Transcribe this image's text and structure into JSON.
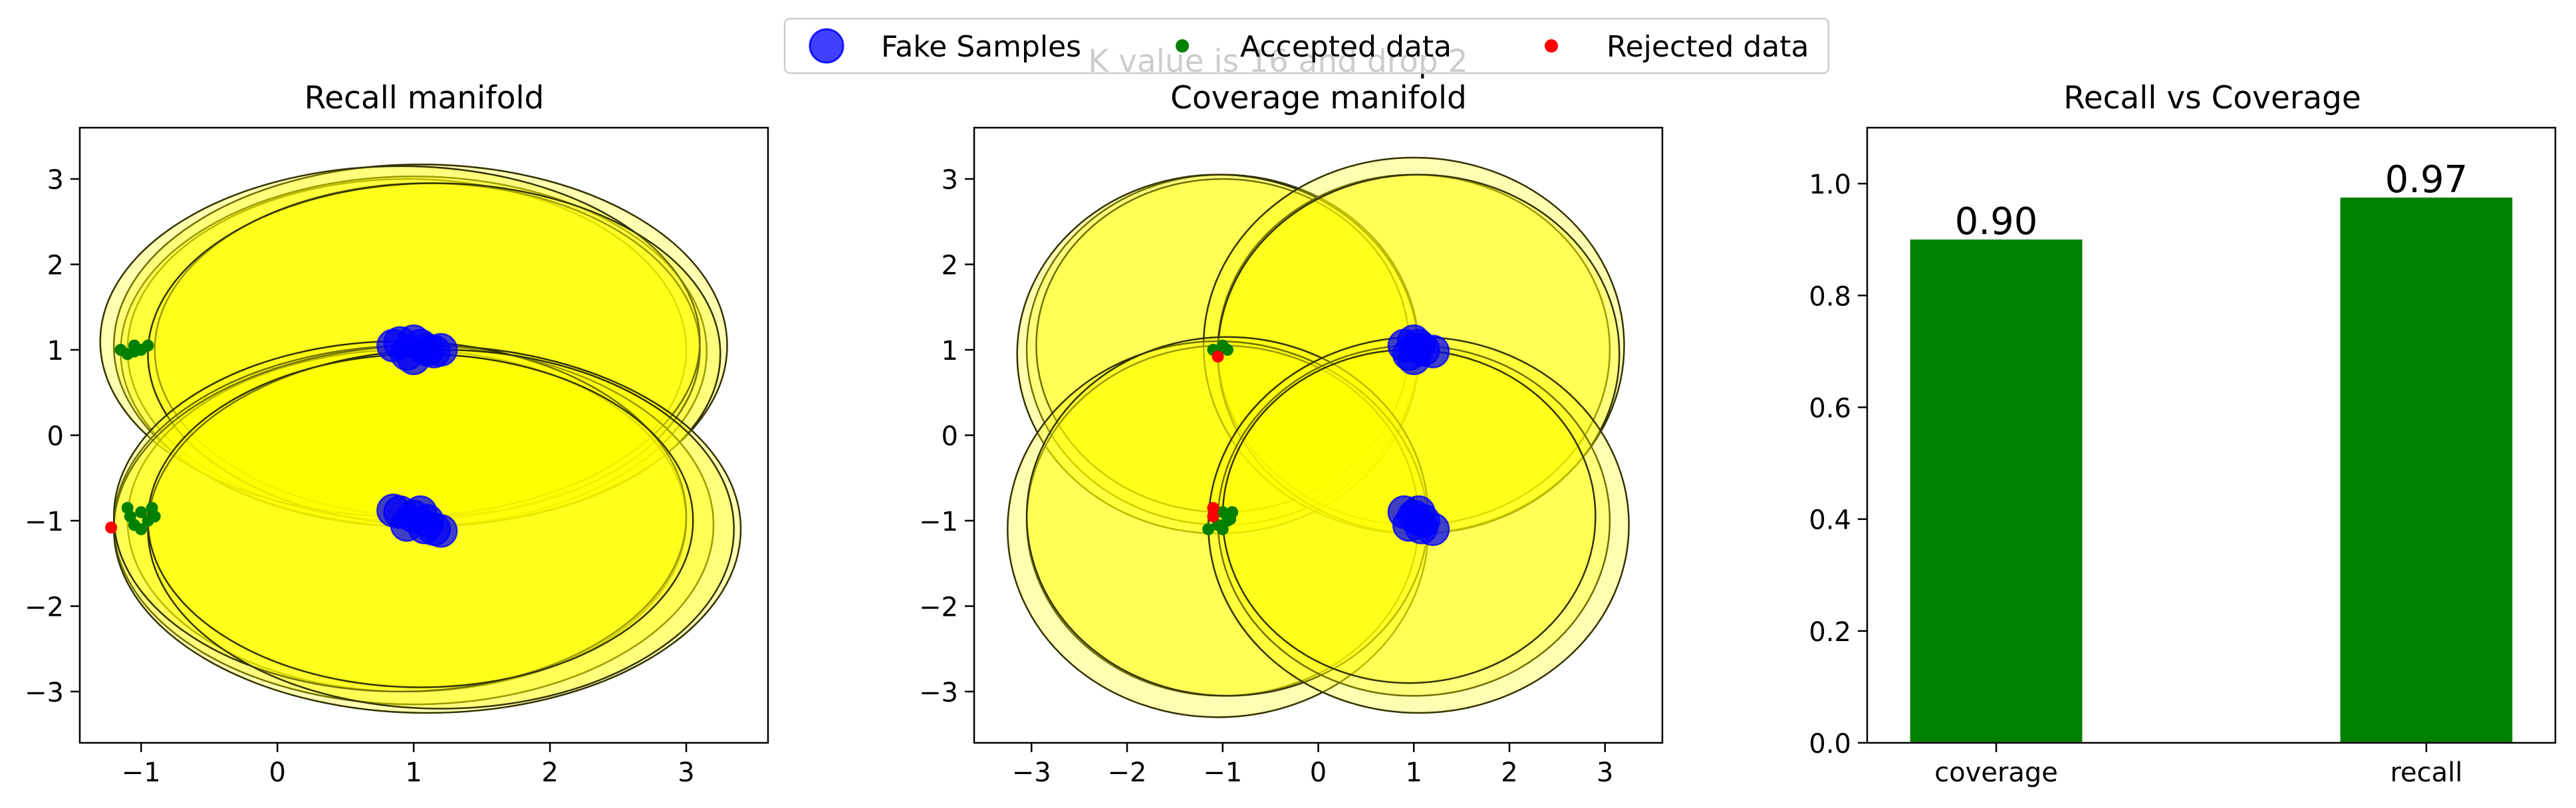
{
  "figure": {
    "suptitle": "K value is 16 and drop 2",
    "legend": {
      "location": "top-center",
      "entries": [
        {
          "label": "Fake Samples",
          "color": "#0000ff",
          "marker": "large-circle"
        },
        {
          "label": "Accepted data",
          "color": "#008000",
          "marker": "small-circle"
        },
        {
          "label": "Rejected data",
          "color": "#ff0000",
          "marker": "small-circle"
        }
      ]
    }
  },
  "chart_data": [
    {
      "type": "scatter",
      "title": "Recall manifold",
      "xlabel": "",
      "ylabel": "",
      "xlim": [
        -1.45,
        3.6
      ],
      "ylim": [
        -3.6,
        3.6
      ],
      "xticks": [
        -1,
        0,
        1,
        2,
        3
      ],
      "xtick_labels": [
        "−1",
        "0",
        "1",
        "2",
        "3"
      ],
      "yticks": [
        -3,
        -2,
        -1,
        0,
        1,
        2,
        3
      ],
      "ytick_labels": [
        "−3",
        "−2",
        "−1",
        "0",
        "1",
        "2",
        "3"
      ],
      "grid": false,
      "manifold_circle_colors": {
        "fill": "#ffff00",
        "edge": "#333300"
      },
      "manifolds": [
        {
          "cx": 0.95,
          "cy": 1.0,
          "rx": 2.05,
          "ry": 2.0
        },
        {
          "cx": 1.0,
          "cy": 0.98,
          "rx": 2.15,
          "ry": 2.05
        },
        {
          "cx": 1.05,
          "cy": 1.05,
          "rx": 2.25,
          "ry": 2.12
        },
        {
          "cx": 1.1,
          "cy": 1.0,
          "rx": 2.0,
          "ry": 1.95
        },
        {
          "cx": 0.9,
          "cy": 1.1,
          "rx": 2.2,
          "ry": 2.05
        },
        {
          "cx": 1.15,
          "cy": 0.95,
          "rx": 2.1,
          "ry": 2.0
        },
        {
          "cx": 0.95,
          "cy": -1.0,
          "rx": 2.05,
          "ry": 2.0
        },
        {
          "cx": 1.0,
          "cy": -1.05,
          "rx": 2.2,
          "ry": 2.1
        },
        {
          "cx": 1.1,
          "cy": -1.1,
          "rx": 2.3,
          "ry": 2.15
        },
        {
          "cx": 0.9,
          "cy": -0.95,
          "rx": 2.1,
          "ry": 2.05
        },
        {
          "cx": 1.2,
          "cy": -1.1,
          "rx": 2.15,
          "ry": 2.1
        },
        {
          "cx": 1.05,
          "cy": -1.0,
          "rx": 2.0,
          "ry": 1.95
        }
      ],
      "series": [
        {
          "name": "Fake Samples",
          "color": "#0000ff",
          "points": [
            [
              0.9,
              1.08
            ],
            [
              1.0,
              1.1
            ],
            [
              1.1,
              1.0
            ],
            [
              0.95,
              0.95
            ],
            [
              1.05,
              1.05
            ],
            [
              0.85,
              1.05
            ],
            [
              1.15,
              0.98
            ],
            [
              1.2,
              1.0
            ],
            [
              1.0,
              0.9
            ],
            [
              0.9,
              -0.9
            ],
            [
              1.0,
              -0.95
            ],
            [
              1.1,
              -1.0
            ],
            [
              0.95,
              -1.05
            ],
            [
              1.05,
              -0.9
            ],
            [
              1.15,
              -1.1
            ],
            [
              1.2,
              -1.12
            ],
            [
              0.85,
              -0.88
            ],
            [
              1.08,
              -1.08
            ]
          ]
        },
        {
          "name": "Accepted data",
          "color": "#008000",
          "points": [
            [
              -1.15,
              1.0
            ],
            [
              -1.05,
              1.05
            ],
            [
              -1.0,
              1.0
            ],
            [
              -1.1,
              0.95
            ],
            [
              -0.95,
              1.05
            ],
            [
              -1.05,
              0.98
            ],
            [
              -1.1,
              -0.85
            ],
            [
              -1.0,
              -0.9
            ],
            [
              -0.95,
              -1.0
            ],
            [
              -1.05,
              -1.05
            ],
            [
              -1.0,
              -1.1
            ],
            [
              -0.9,
              -0.95
            ],
            [
              -0.92,
              -0.85
            ],
            [
              -1.08,
              -0.95
            ]
          ]
        },
        {
          "name": "Rejected data",
          "color": "#ff0000",
          "points": [
            [
              -1.22,
              -1.08
            ]
          ]
        }
      ]
    },
    {
      "type": "scatter",
      "title": "Coverage manifold",
      "xlabel": "",
      "ylabel": "",
      "xlim": [
        -3.6,
        3.6
      ],
      "ylim": [
        -3.6,
        3.6
      ],
      "xticks": [
        -3,
        -2,
        -1,
        0,
        1,
        2,
        3
      ],
      "xtick_labels": [
        "−3",
        "−2",
        "−1",
        "0",
        "1",
        "2",
        "3"
      ],
      "yticks": [
        -3,
        -2,
        -1,
        0,
        1,
        2,
        3
      ],
      "ytick_labels": [
        "−3",
        "−2",
        "−1",
        "0",
        "1",
        "2",
        "3"
      ],
      "grid": false,
      "manifold_circle_colors": {
        "fill": "#ffff00",
        "edge": "#333300"
      },
      "manifolds": [
        {
          "cx": -1.0,
          "cy": 1.0,
          "rx": 2.05,
          "ry": 2.05
        },
        {
          "cx": -1.0,
          "cy": 1.05,
          "rx": 1.95,
          "ry": 1.95
        },
        {
          "cx": -1.05,
          "cy": 0.95,
          "rx": 2.1,
          "ry": 2.1
        },
        {
          "cx": 1.0,
          "cy": 1.0,
          "rx": 2.05,
          "ry": 2.05
        },
        {
          "cx": 1.0,
          "cy": 1.05,
          "rx": 2.2,
          "ry": 2.2
        },
        {
          "cx": 1.05,
          "cy": 0.95,
          "rx": 2.1,
          "ry": 2.1
        },
        {
          "cx": -1.0,
          "cy": -1.0,
          "rx": 2.05,
          "ry": 2.05
        },
        {
          "cx": -1.05,
          "cy": -1.1,
          "rx": 2.2,
          "ry": 2.2
        },
        {
          "cx": -0.95,
          "cy": -0.95,
          "rx": 2.1,
          "ry": 2.1
        },
        {
          "cx": 1.0,
          "cy": -1.0,
          "rx": 2.05,
          "ry": 2.05
        },
        {
          "cx": 1.05,
          "cy": -1.05,
          "rx": 2.2,
          "ry": 2.2
        },
        {
          "cx": 0.95,
          "cy": -0.95,
          "rx": 1.95,
          "ry": 1.95
        }
      ],
      "series": [
        {
          "name": "Fake Samples",
          "color": "#0000ff",
          "points": [
            [
              0.9,
              1.05
            ],
            [
              1.0,
              1.1
            ],
            [
              1.1,
              1.0
            ],
            [
              0.95,
              0.95
            ],
            [
              1.05,
              1.05
            ],
            [
              1.2,
              0.98
            ],
            [
              1.0,
              0.9
            ],
            [
              0.9,
              -0.9
            ],
            [
              1.0,
              -0.95
            ],
            [
              1.1,
              -1.0
            ],
            [
              0.95,
              -1.05
            ],
            [
              1.05,
              -0.9
            ],
            [
              1.2,
              -1.1
            ],
            [
              1.08,
              -1.08
            ]
          ]
        },
        {
          "name": "Accepted data",
          "color": "#008000",
          "points": [
            [
              -1.1,
              1.0
            ],
            [
              -1.0,
              1.05
            ],
            [
              -0.95,
              1.0
            ],
            [
              -1.05,
              0.98
            ],
            [
              -1.0,
              -0.9
            ],
            [
              -0.95,
              -1.0
            ],
            [
              -1.05,
              -1.05
            ],
            [
              -1.0,
              -1.1
            ],
            [
              -1.15,
              -1.1
            ],
            [
              -0.9,
              -0.9
            ],
            [
              -0.92,
              -0.98
            ]
          ]
        },
        {
          "name": "Rejected data",
          "color": "#ff0000",
          "points": [
            [
              -1.05,
              0.92
            ],
            [
              -1.1,
              -0.85
            ],
            [
              -1.1,
              -0.95
            ]
          ]
        }
      ]
    },
    {
      "type": "bar",
      "title": "Recall vs Coverage",
      "xlabel": "",
      "ylabel": "",
      "categories": [
        "coverage",
        "recall"
      ],
      "values": [
        0.9,
        0.975
      ],
      "value_labels": [
        "0.90",
        "0.97"
      ],
      "bar_color": "#008000",
      "ylim": [
        0,
        1.1
      ],
      "yticks": [
        0.0,
        0.2,
        0.4,
        0.6,
        0.8,
        1.0
      ],
      "ytick_labels": [
        "0.0",
        "0.2",
        "0.4",
        "0.6",
        "0.8",
        "1.0"
      ],
      "grid": false
    }
  ]
}
